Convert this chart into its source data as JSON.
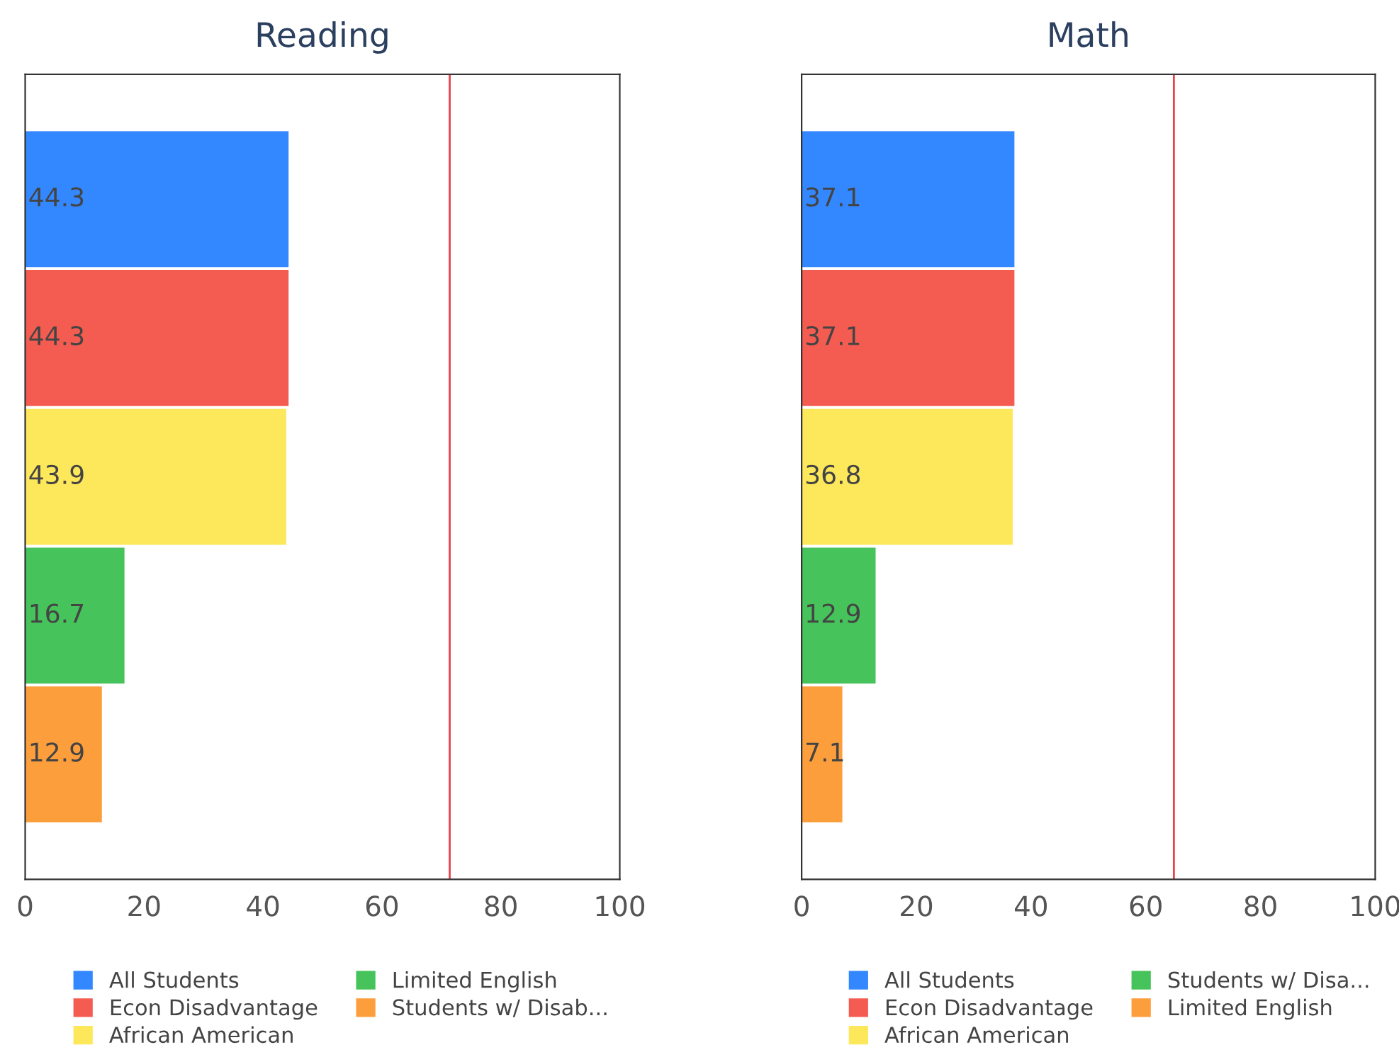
{
  "chart_data": [
    {
      "type": "bar",
      "title": "Reading",
      "orientation": "horizontal",
      "categories": [
        null,
        null,
        null,
        null,
        null
      ],
      "xlim": [
        0,
        100
      ],
      "xticks": [
        0,
        20,
        40,
        60,
        80,
        100
      ],
      "grid": false,
      "legend": "bottom",
      "data_labels": true,
      "tick_labels": "x",
      "series": [
        {
          "name": "All Students",
          "color": "#3388ff",
          "values": [
            44.3,
            null,
            null,
            null,
            null
          ]
        },
        {
          "name": "Econ Disadvantage",
          "color": "#f45c51",
          "values": [
            null,
            44.3,
            null,
            null,
            null
          ]
        },
        {
          "name": "African American",
          "color": "#fde75a",
          "values": [
            null,
            null,
            43.9,
            null,
            null
          ]
        },
        {
          "name": "Limited English",
          "color": "#46c35a",
          "values": [
            null,
            null,
            null,
            16.7,
            null
          ]
        },
        {
          "name": "Students w/ Disab...",
          "color": "#fd9e3c",
          "values": [
            null,
            null,
            null,
            null,
            12.9
          ]
        }
      ],
      "ref_lines": [
        {
          "axis": "x",
          "value": 71.4,
          "color": "#e8434a"
        }
      ]
    },
    {
      "type": "bar",
      "title": "Math",
      "orientation": "horizontal",
      "categories": [
        null,
        null,
        null,
        null,
        null
      ],
      "xlim": [
        0,
        100
      ],
      "xticks": [
        0,
        20,
        40,
        60,
        80,
        100
      ],
      "grid": false,
      "legend": "bottom",
      "data_labels": true,
      "tick_labels": "x",
      "series": [
        {
          "name": "All Students",
          "color": "#3388ff",
          "values": [
            37.1,
            null,
            null,
            null,
            null
          ]
        },
        {
          "name": "Econ Disadvantage",
          "color": "#f45c51",
          "values": [
            null,
            37.1,
            null,
            null,
            null
          ]
        },
        {
          "name": "African American",
          "color": "#fde75a",
          "values": [
            null,
            null,
            36.8,
            null,
            null
          ]
        },
        {
          "name": "Students w/ Disa...",
          "color": "#46c35a",
          "values": [
            null,
            null,
            null,
            12.9,
            null
          ]
        },
        {
          "name": "Limited English",
          "color": "#fd9e3c",
          "values": [
            null,
            null,
            null,
            null,
            7.1
          ]
        }
      ],
      "ref_lines": [
        {
          "axis": "x",
          "value": 64.9,
          "color": "#e8434a"
        }
      ]
    }
  ]
}
